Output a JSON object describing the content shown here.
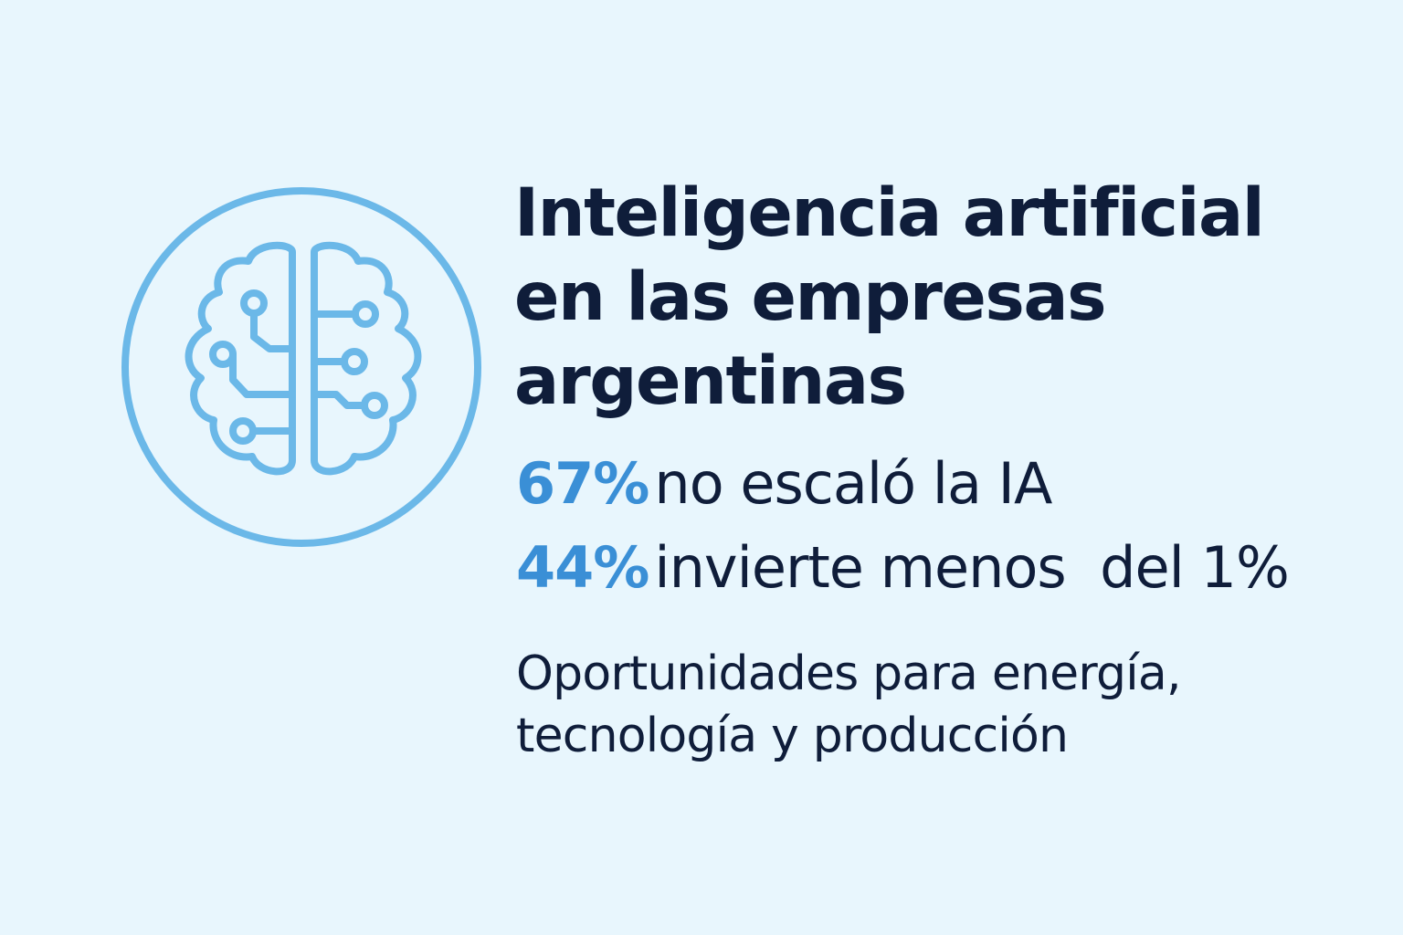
{
  "icon": {
    "name": "brain-circuit-icon",
    "color": "#6bb8e8"
  },
  "title": {
    "line1": "Inteligencia artificial",
    "line2": "en las empresas",
    "line3": "argentinas"
  },
  "stats": [
    {
      "value": "67%",
      "text": "no escaló la IA"
    },
    {
      "value": "44%",
      "text": "invierte menos  del 1%"
    }
  ],
  "subtitle": {
    "line1": "Oportunidades para energía,",
    "line2": "tecnología y producción"
  },
  "colors": {
    "background": "#e8f6fd",
    "text": "#0f1d3a",
    "accent": "#3a8fd6",
    "icon": "#6bb8e8"
  }
}
